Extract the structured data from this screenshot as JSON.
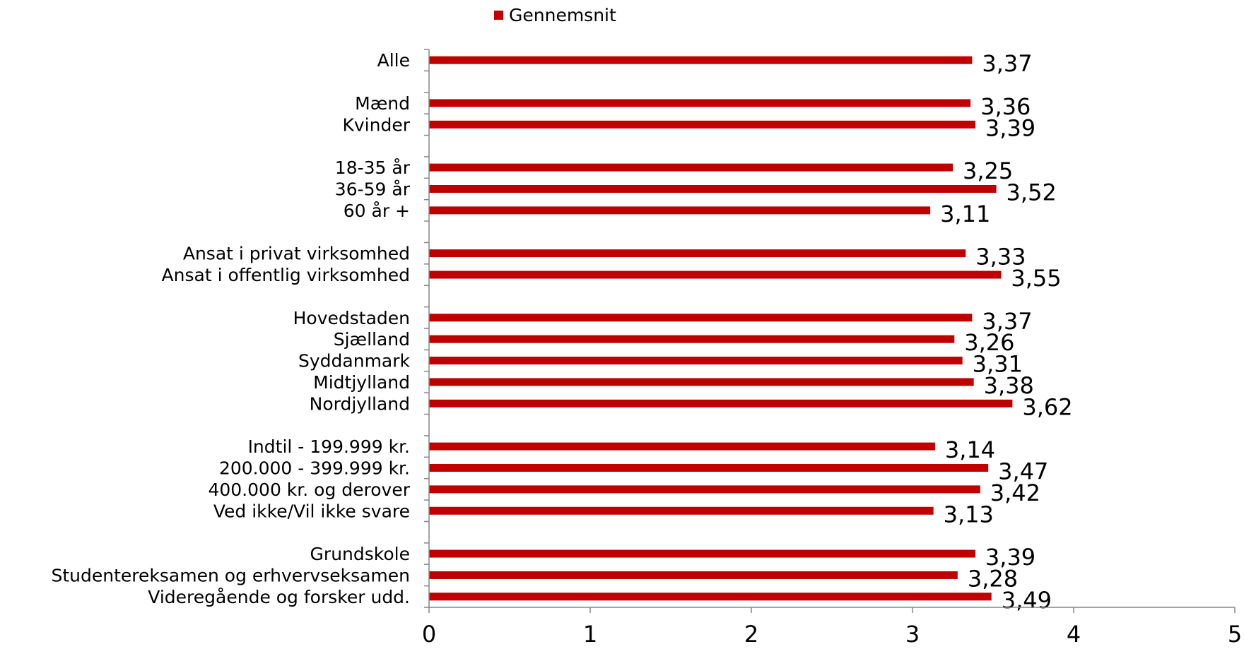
{
  "chart_data": {
    "type": "bar",
    "orientation": "horizontal",
    "legend": {
      "position": "top",
      "entries": [
        "Gennemsnit"
      ]
    },
    "series": [
      {
        "name": "Gennemsnit",
        "color": "#C00000"
      }
    ],
    "xlim": [
      0,
      5
    ],
    "xticks": [
      0,
      1,
      2,
      3,
      4,
      5
    ],
    "grid": false,
    "rows": [
      {
        "label": "Alle",
        "value": 3.37,
        "display": "3,37"
      },
      null,
      {
        "label": "Mænd",
        "value": 3.36,
        "display": "3,36"
      },
      {
        "label": "Kvinder",
        "value": 3.39,
        "display": "3,39"
      },
      null,
      {
        "label": "18-35 år",
        "value": 3.25,
        "display": "3,25"
      },
      {
        "label": "36-59 år",
        "value": 3.52,
        "display": "3,52"
      },
      {
        "label": "60 år +",
        "value": 3.11,
        "display": "3,11"
      },
      null,
      {
        "label": "Ansat i privat virksomhed",
        "value": 3.33,
        "display": "3,33"
      },
      {
        "label": "Ansat i offentlig virksomhed",
        "value": 3.55,
        "display": "3,55"
      },
      null,
      {
        "label": "Hovedstaden",
        "value": 3.37,
        "display": "3,37"
      },
      {
        "label": "Sjælland",
        "value": 3.26,
        "display": "3,26"
      },
      {
        "label": "Syddanmark",
        "value": 3.31,
        "display": "3,31"
      },
      {
        "label": "Midtjylland",
        "value": 3.38,
        "display": "3,38"
      },
      {
        "label": "Nordjylland",
        "value": 3.62,
        "display": "3,62"
      },
      null,
      {
        "label": "Indtil - 199.999 kr.",
        "value": 3.14,
        "display": "3,14"
      },
      {
        "label": "200.000 - 399.999 kr.",
        "value": 3.47,
        "display": "3,47"
      },
      {
        "label": "400.000 kr. og derover",
        "value": 3.42,
        "display": "3,42"
      },
      {
        "label": "Ved ikke/Vil ikke svare",
        "value": 3.13,
        "display": "3,13"
      },
      null,
      {
        "label": "Grundskole",
        "value": 3.39,
        "display": "3,39"
      },
      {
        "label": "Studentereksamen og erhvervseksamen",
        "value": 3.28,
        "display": "3,28"
      },
      {
        "label": "Videregående og forsker udd.",
        "value": 3.49,
        "display": "3,49"
      }
    ]
  }
}
